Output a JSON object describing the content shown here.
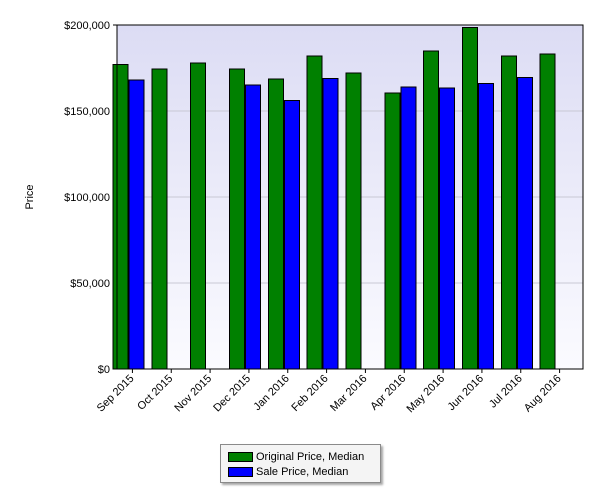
{
  "chart_data": {
    "type": "bar",
    "ylabel": "Price",
    "ylim": [
      0,
      200000
    ],
    "yticks": [
      0,
      50000,
      100000,
      150000,
      200000
    ],
    "ytick_labels": [
      "$0",
      "$50,000",
      "$100,000",
      "$150,000",
      "$200,000"
    ],
    "grid": true,
    "legend_position": "bottom-center",
    "categories": [
      "Sep 2015",
      "Oct 2015",
      "Nov 2015",
      "Dec 2015",
      "Jan 2016",
      "Feb 2016",
      "Mar 2016",
      "Apr 2016",
      "May 2016",
      "Jun 2016",
      "Jul 2016",
      "Aug 2016"
    ],
    "series": [
      {
        "name": "Original Price, Median",
        "color": "#008000",
        "values": [
          177000,
          174500,
          178000,
          174500,
          168500,
          182000,
          172000,
          160500,
          185000,
          198500,
          182000,
          183000
        ]
      },
      {
        "name": "Sale Price, Median",
        "color": "#0000ff",
        "values": [
          168000,
          null,
          null,
          165000,
          156000,
          169000,
          null,
          164000,
          163500,
          166000,
          169500,
          null
        ]
      }
    ]
  },
  "colors": {
    "plot_background": "#e4e4f7",
    "plot_border": "#000000",
    "grid": "#c8c8d4"
  }
}
